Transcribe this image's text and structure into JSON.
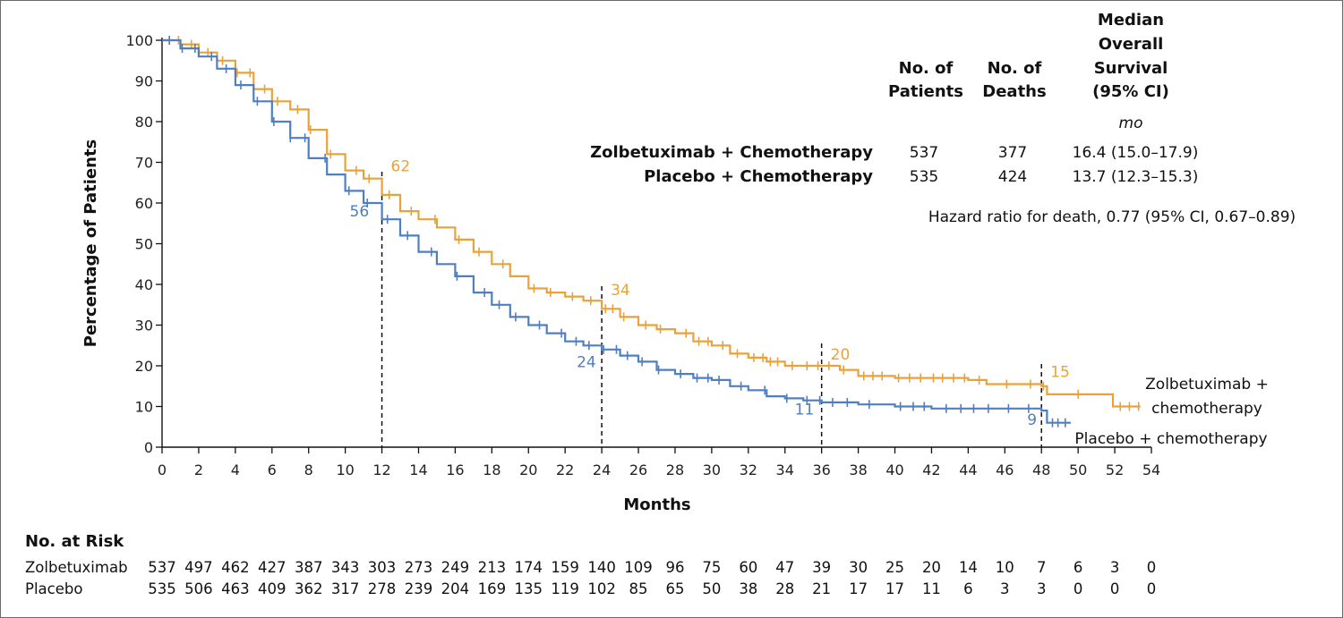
{
  "chart_data": {
    "type": "line",
    "xlabel": "Months",
    "ylabel": "Percentage of Patients",
    "xlim": [
      0,
      54
    ],
    "ylim": [
      0,
      100
    ],
    "x_ticks": [
      "0",
      "2",
      "4",
      "6",
      "8",
      "10",
      "12",
      "14",
      "16",
      "18",
      "20",
      "22",
      "24",
      "26",
      "28",
      "30",
      "32",
      "34",
      "36",
      "38",
      "40",
      "42",
      "44",
      "46",
      "48",
      "50",
      "52",
      "54"
    ],
    "y_ticks": [
      "0",
      "10",
      "20",
      "30",
      "40",
      "50",
      "60",
      "70",
      "80",
      "90",
      "100"
    ],
    "series": [
      {
        "name": "Zolbetuximab + chemotherapy",
        "color": "#e9a23b",
        "points": [
          [
            0,
            100
          ],
          [
            1,
            99
          ],
          [
            2,
            97
          ],
          [
            3,
            95
          ],
          [
            4,
            92
          ],
          [
            5,
            88
          ],
          [
            6,
            85
          ],
          [
            7,
            83
          ],
          [
            8,
            78
          ],
          [
            9,
            72
          ],
          [
            10,
            68
          ],
          [
            11,
            66
          ],
          [
            12,
            62
          ],
          [
            13,
            58
          ],
          [
            14,
            56
          ],
          [
            15,
            54
          ],
          [
            16,
            51
          ],
          [
            17,
            48
          ],
          [
            18,
            45
          ],
          [
            19,
            42
          ],
          [
            20,
            39
          ],
          [
            21,
            38
          ],
          [
            22,
            37
          ],
          [
            23,
            36
          ],
          [
            24,
            34
          ],
          [
            25,
            32
          ],
          [
            26,
            30
          ],
          [
            27,
            29
          ],
          [
            28,
            28
          ],
          [
            29,
            26
          ],
          [
            30,
            25
          ],
          [
            31,
            23
          ],
          [
            32,
            22
          ],
          [
            33,
            21
          ],
          [
            34,
            20
          ],
          [
            35,
            20
          ],
          [
            36,
            20
          ],
          [
            37,
            19
          ],
          [
            38,
            17.5
          ],
          [
            40,
            17
          ],
          [
            44,
            16.5
          ],
          [
            45,
            15.5
          ],
          [
            48,
            15
          ],
          [
            48.3,
            13
          ],
          [
            50,
            13
          ],
          [
            51.9,
            13
          ],
          [
            51.9,
            10
          ],
          [
            53.4,
            10
          ]
        ],
        "censor_x": [
          0.4,
          0.9,
          1.6,
          2.5,
          3.3,
          4.1,
          4.8,
          5.6,
          6.3,
          7.4,
          8.1,
          9.2,
          10.6,
          11.3,
          12.4,
          13.6,
          14.9,
          16.2,
          17.3,
          18.6,
          20.3,
          21.2,
          22.4,
          23.4,
          24.2,
          24.6,
          25.2,
          26.4,
          27.2,
          28.6,
          29.3,
          29.8,
          30.6,
          31.4,
          32.3,
          32.8,
          33.2,
          33.6,
          34.4,
          35.2,
          35.8,
          36.4,
          37.2,
          38.3,
          38.8,
          39.3,
          40.2,
          40.8,
          41.4,
          42.1,
          42.6,
          43.2,
          43.8,
          44.6,
          46.1,
          47.4,
          48.1,
          50.0,
          52.3,
          52.8,
          53.3
        ],
        "annotations": [
          {
            "x": 12,
            "value": "62"
          },
          {
            "x": 24,
            "value": "34"
          },
          {
            "x": 36,
            "value": "20"
          },
          {
            "x": 48,
            "value": "15"
          }
        ],
        "label_lines": [
          "Zolbetuximab +",
          "chemotherapy"
        ]
      },
      {
        "name": "Placebo + chemotherapy",
        "color": "#4f7fc0",
        "points": [
          [
            0,
            100
          ],
          [
            1,
            98
          ],
          [
            2,
            96
          ],
          [
            3,
            93
          ],
          [
            4,
            89
          ],
          [
            5,
            85
          ],
          [
            6,
            80
          ],
          [
            7,
            76
          ],
          [
            8,
            71
          ],
          [
            9,
            67
          ],
          [
            10,
            63
          ],
          [
            11,
            60
          ],
          [
            12,
            56
          ],
          [
            13,
            52
          ],
          [
            14,
            48
          ],
          [
            15,
            45
          ],
          [
            16,
            42
          ],
          [
            17,
            38
          ],
          [
            18,
            35
          ],
          [
            19,
            32
          ],
          [
            20,
            30
          ],
          [
            21,
            28
          ],
          [
            22,
            26
          ],
          [
            23,
            25
          ],
          [
            24,
            24
          ],
          [
            25,
            22.5
          ],
          [
            26,
            21
          ],
          [
            27,
            19
          ],
          [
            28,
            18
          ],
          [
            29,
            17
          ],
          [
            30,
            16.5
          ],
          [
            31,
            15
          ],
          [
            32,
            14
          ],
          [
            33,
            12.5
          ],
          [
            34,
            12
          ],
          [
            35,
            11.5
          ],
          [
            36,
            11
          ],
          [
            38,
            10.5
          ],
          [
            40,
            10
          ],
          [
            42,
            9.5
          ],
          [
            46,
            9.5
          ],
          [
            48,
            9
          ],
          [
            48.3,
            6
          ],
          [
            49.6,
            6
          ]
        ],
        "censor_x": [
          0.4,
          1.1,
          1.8,
          2.7,
          3.5,
          4.3,
          5.2,
          6.1,
          7.0,
          7.8,
          8.9,
          10.2,
          11.2,
          12.3,
          13.4,
          14.7,
          16.1,
          17.6,
          18.4,
          19.3,
          20.6,
          21.8,
          22.6,
          23.3,
          24.1,
          24.8,
          25.4,
          26.2,
          27.1,
          28.3,
          29.2,
          29.8,
          30.4,
          31.6,
          32.9,
          34.1,
          35.2,
          35.9,
          36.6,
          37.4,
          38.6,
          40.3,
          41.0,
          41.6,
          42.8,
          43.6,
          44.3,
          45.1,
          46.2,
          47.3,
          48.6,
          48.9,
          49.3
        ],
        "annotations": [
          {
            "x": 12,
            "value": "56"
          },
          {
            "x": 24,
            "value": "24"
          },
          {
            "x": 36,
            "value": "11"
          },
          {
            "x": 48,
            "value": "9"
          }
        ],
        "label_lines": [
          "Placebo + chemotherapy"
        ]
      }
    ],
    "summary_table": {
      "headers": {
        "patients": [
          "No. of",
          "Patients"
        ],
        "deaths": [
          "No. of",
          "Deaths"
        ],
        "survival": [
          "Median",
          "Overall",
          "Survival",
          "(95% CI)"
        ],
        "unit": "mo"
      },
      "rows": [
        {
          "group": "Zolbetuximab + Chemotherapy",
          "patients": "537",
          "deaths": "377",
          "median": "16.4 (15.0–17.9)"
        },
        {
          "group": "Placebo + Chemotherapy",
          "patients": "535",
          "deaths": "424",
          "median": "13.7 (12.3–15.3)"
        }
      ],
      "hazard_ratio": "Hazard ratio for death, 0.77 (95% CI, 0.67–0.89)"
    },
    "at_risk": {
      "title": "No. at Risk",
      "rows": [
        {
          "label": "Zolbetuximab",
          "values": [
            "537",
            "497",
            "462",
            "427",
            "387",
            "343",
            "303",
            "273",
            "249",
            "213",
            "174",
            "159",
            "140",
            "109",
            "96",
            "75",
            "60",
            "47",
            "39",
            "30",
            "25",
            "20",
            "14",
            "10",
            "7",
            "6",
            "3",
            "0"
          ]
        },
        {
          "label": "Placebo",
          "values": [
            "535",
            "506",
            "463",
            "409",
            "362",
            "317",
            "278",
            "239",
            "204",
            "169",
            "135",
            "119",
            "102",
            "85",
            "65",
            "50",
            "38",
            "28",
            "21",
            "17",
            "17",
            "11",
            "6",
            "3",
            "3",
            "0",
            "0",
            "0"
          ]
        }
      ]
    }
  }
}
